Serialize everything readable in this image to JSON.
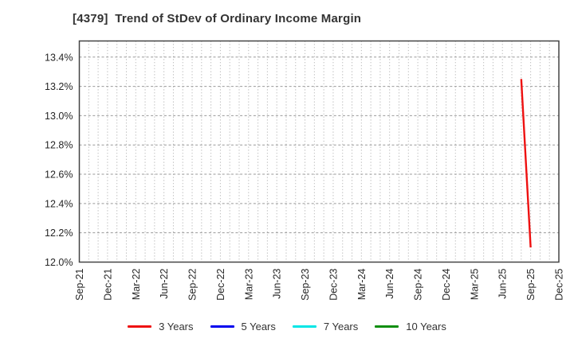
{
  "window": {
    "background": "#ffffff"
  },
  "chart_data": {
    "type": "line",
    "title": "[4379]  Trend of StDev of Ordinary Income Margin",
    "xlabel": "",
    "ylabel": "",
    "x_tick_labels": [
      "Sep-21",
      "Dec-21",
      "Mar-22",
      "Jun-22",
      "Sep-22",
      "Dec-22",
      "Mar-23",
      "Jun-23",
      "Sep-23",
      "Dec-23",
      "Mar-24",
      "Jun-24",
      "Sep-24",
      "Dec-24",
      "Mar-25",
      "Jun-25",
      "Sep-25",
      "Dec-25"
    ],
    "months_per_tick": 3,
    "x_minor_grid_unit": "month",
    "yticks": [
      12.0,
      12.2,
      12.4,
      12.6,
      12.8,
      13.0,
      13.2,
      13.4
    ],
    "ytick_suffix": "%",
    "ylim": [
      12.0,
      13.51
    ],
    "grid": true,
    "legend_position": "bottom",
    "series": [
      {
        "name": "3 Years",
        "color": "#ee1111",
        "points": [
          {
            "month": "Aug-25",
            "month_index": 47,
            "value": 13.25
          },
          {
            "month": "Sep-25",
            "month_index": 48,
            "value": 12.1
          }
        ]
      },
      {
        "name": "5 Years",
        "color": "#0000ee",
        "points": []
      },
      {
        "name": "7 Years",
        "color": "#00e6e6",
        "points": []
      },
      {
        "name": "10 Years",
        "color": "#0e8e0e",
        "points": []
      }
    ]
  },
  "colors": {
    "title_text": "#333333",
    "tick_label_text": "#262626",
    "plot_border": "#444444",
    "grid_major_h": "#999999",
    "grid_minor_v": "#b5b5b5",
    "background": "#ffffff"
  }
}
